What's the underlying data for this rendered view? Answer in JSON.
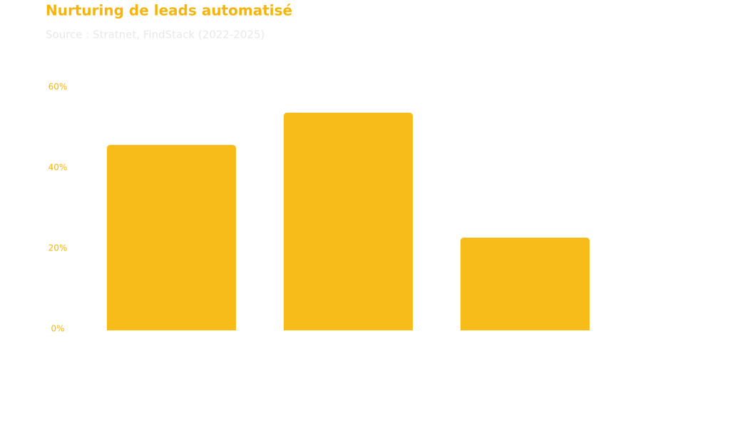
{
  "chart_data": {
    "type": "bar",
    "title": "Nurturing de leads automatisé",
    "subtitle": "Source : Stratnet, FindStack (2022-2025)",
    "categories": [
      null,
      null,
      null
    ],
    "values": [
      46,
      54,
      23
    ],
    "color": "#f7bb1a",
    "ylim": [
      0,
      60
    ],
    "yticks": [
      {
        "value": 0,
        "label": "0%"
      },
      {
        "value": 20,
        "label": "20%"
      },
      {
        "value": 40,
        "label": "40%"
      },
      {
        "value": 60,
        "label": "60%"
      }
    ],
    "grid": false
  }
}
